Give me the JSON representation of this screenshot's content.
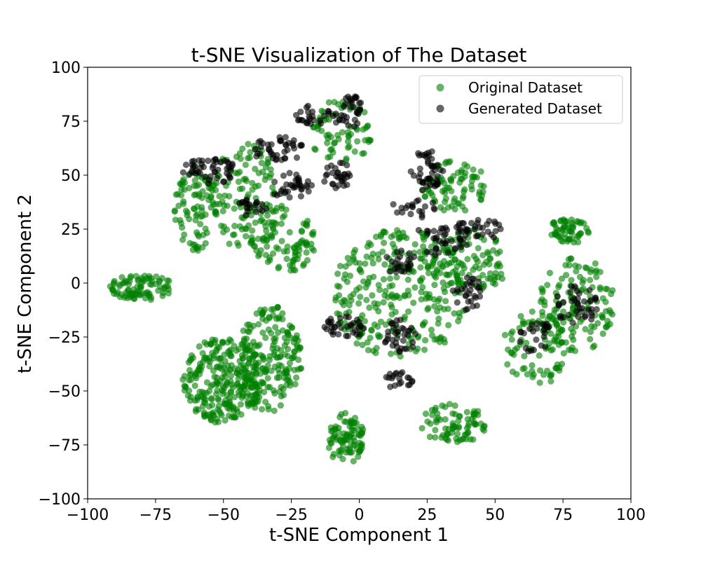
{
  "chart_data": {
    "type": "scatter",
    "title": "t-SNE Visualization of The Dataset",
    "xlabel": "t-SNE Component 1",
    "ylabel": "t-SNE Component 2",
    "xlim": [
      -100,
      100
    ],
    "ylim": [
      -100,
      100
    ],
    "xticks": [
      -100,
      -75,
      -50,
      -25,
      0,
      25,
      50,
      75,
      100
    ],
    "yticks": [
      -100,
      -75,
      -50,
      -25,
      0,
      25,
      50,
      75,
      100
    ],
    "grid": false,
    "legend_position": "top-right",
    "series": [
      {
        "name": "Original Dataset",
        "color": "#008000",
        "opacity": 0.6,
        "clusters": [
          {
            "cx": -80,
            "cy": -2,
            "rx": 12,
            "ry": 6,
            "n": 90
          },
          {
            "cx": -50,
            "cy": -45,
            "rx": 15,
            "ry": 20,
            "n": 260
          },
          {
            "cx": -33,
            "cy": -35,
            "rx": 12,
            "ry": 25,
            "n": 200
          },
          {
            "cx": -5,
            "cy": -72,
            "rx": 7,
            "ry": 12,
            "n": 90
          },
          {
            "cx": 35,
            "cy": -65,
            "rx": 13,
            "ry": 9,
            "n": 80
          },
          {
            "cx": 77,
            "cy": 24,
            "rx": 8,
            "ry": 6,
            "n": 60
          },
          {
            "cx": 80,
            "cy": -10,
            "rx": 14,
            "ry": 22,
            "n": 130
          },
          {
            "cx": 65,
            "cy": -30,
            "rx": 12,
            "ry": 18,
            "n": 80
          },
          {
            "cx": -60,
            "cy": 35,
            "rx": 8,
            "ry": 20,
            "n": 90
          },
          {
            "cx": -42,
            "cy": 40,
            "rx": 12,
            "ry": 25,
            "n": 120
          },
          {
            "cx": -28,
            "cy": 20,
            "rx": 12,
            "ry": 16,
            "n": 90
          },
          {
            "cx": -7,
            "cy": 70,
            "rx": 12,
            "ry": 15,
            "n": 70
          },
          {
            "cx": 15,
            "cy": -5,
            "rx": 25,
            "ry": 30,
            "n": 280
          },
          {
            "cx": 35,
            "cy": 45,
            "rx": 12,
            "ry": 12,
            "n": 80
          },
          {
            "cx": 40,
            "cy": 10,
            "rx": 15,
            "ry": 15,
            "n": 100
          }
        ]
      },
      {
        "name": "Generated Dataset",
        "color": "#000000",
        "opacity": 0.6,
        "clusters": [
          {
            "cx": -55,
            "cy": 52,
            "rx": 10,
            "ry": 6,
            "n": 50
          },
          {
            "cx": -40,
            "cy": 35,
            "rx": 6,
            "ry": 4,
            "n": 20
          },
          {
            "cx": -30,
            "cy": 62,
            "rx": 10,
            "ry": 6,
            "n": 40
          },
          {
            "cx": -25,
            "cy": 45,
            "rx": 8,
            "ry": 6,
            "n": 35
          },
          {
            "cx": -15,
            "cy": 78,
            "rx": 10,
            "ry": 5,
            "n": 30
          },
          {
            "cx": -3,
            "cy": 80,
            "rx": 4,
            "ry": 8,
            "n": 30
          },
          {
            "cx": -8,
            "cy": 50,
            "rx": 6,
            "ry": 6,
            "n": 30
          },
          {
            "cx": 25,
            "cy": 52,
            "rx": 6,
            "ry": 10,
            "n": 45
          },
          {
            "cx": 30,
            "cy": 20,
            "rx": 10,
            "ry": 8,
            "n": 40
          },
          {
            "cx": 45,
            "cy": 25,
            "rx": 10,
            "ry": 5,
            "n": 30
          },
          {
            "cx": 40,
            "cy": -5,
            "rx": 6,
            "ry": 8,
            "n": 30
          },
          {
            "cx": 15,
            "cy": -25,
            "rx": 6,
            "ry": 8,
            "n": 35
          },
          {
            "cx": 15,
            "cy": -45,
            "rx": 6,
            "ry": 4,
            "n": 20
          },
          {
            "cx": -5,
            "cy": -20,
            "rx": 8,
            "ry": 5,
            "n": 35
          },
          {
            "cx": 15,
            "cy": 10,
            "rx": 6,
            "ry": 6,
            "n": 25
          },
          {
            "cx": 80,
            "cy": -10,
            "rx": 8,
            "ry": 10,
            "n": 40
          },
          {
            "cx": 65,
            "cy": -25,
            "rx": 6,
            "ry": 8,
            "n": 25
          },
          {
            "cx": 20,
            "cy": 35,
            "rx": 8,
            "ry": 5,
            "n": 20
          }
        ]
      }
    ]
  }
}
